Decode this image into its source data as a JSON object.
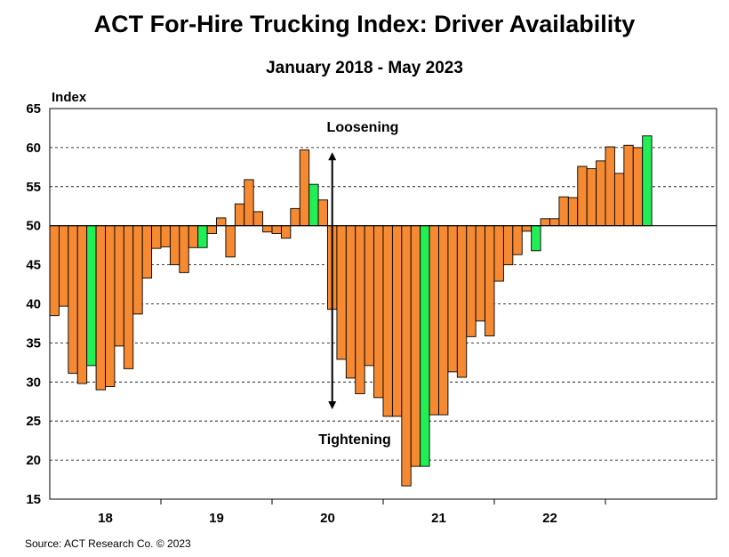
{
  "chart_data": {
    "type": "bar",
    "title": "ACT For-Hire Trucking Index: Driver Availability",
    "subtitle": "January 2018 - May 2023",
    "ylabel": "Index",
    "ylim": [
      15,
      65
    ],
    "yticks": [
      15,
      20,
      25,
      30,
      35,
      40,
      45,
      50,
      55,
      60,
      65
    ],
    "baseline": 50,
    "grid": true,
    "year_labels": [
      "18",
      "19",
      "20",
      "21",
      "22"
    ],
    "annotations": {
      "up": "Loosening",
      "down": "Tightening"
    },
    "colors": {
      "bar": "#f58a33",
      "highlight": "#22ee55",
      "grid": "#000000"
    },
    "values": [
      38.5,
      39.7,
      31.1,
      29.8,
      32.1,
      29.0,
      29.4,
      34.6,
      31.7,
      38.7,
      43.3,
      47.1,
      47.3,
      45.0,
      44.0,
      47.2,
      47.2,
      49.0,
      51.0,
      46.0,
      52.8,
      55.9,
      51.8,
      49.2,
      49.0,
      48.4,
      52.2,
      59.7,
      55.3,
      53.3,
      39.3,
      32.9,
      30.5,
      28.5,
      32.1,
      28.0,
      25.6,
      25.6,
      16.7,
      19.2,
      19.2,
      25.8,
      25.8,
      31.3,
      30.6,
      35.8,
      37.8,
      35.9,
      42.9,
      45.0,
      46.3,
      49.3,
      46.8,
      50.9,
      50.9,
      53.7,
      53.6,
      57.6,
      57.3,
      58.3,
      60.1,
      56.7,
      60.3,
      60.0,
      61.5
    ],
    "highlight_indices": [
      4,
      16,
      28,
      40,
      52,
      64
    ]
  },
  "source": "Source: ACT Research Co. © 2023"
}
